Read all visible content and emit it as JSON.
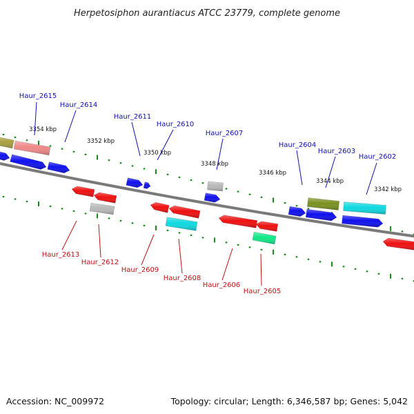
{
  "title": "Herpetosiphon aurantiacus ATCC 23779, complete genome",
  "footer": {
    "accession": "Accession: NC_009972",
    "summary": "Topology: circular; Length: 6,346,587 bp; Genes: 5,042"
  },
  "colors": {
    "backbone": "#7a7a7a",
    "tick": "#1a8a1a",
    "label_forward": "#1010b0",
    "label_reverse": "#c01010",
    "gene_blue": "#1010ee",
    "gene_red": "#ee1010",
    "gene_cyan": "#10d8e0",
    "gene_olive": "#7a9020",
    "gene_gray": "#b8b8b8",
    "gene_pink": "#ef8888",
    "gene_khaki": "#a8a040",
    "gene_green": "#10e888"
  },
  "scale_labels": [
    "3354 kbp",
    "3352 kbp",
    "3350 kbp",
    "3348 kbp",
    "3346 kbp",
    "3344 kbp",
    "3342 kbp"
  ],
  "labels_forward": [
    "Haur_2615",
    "Haur_2614",
    "Haur_2611",
    "Haur_2610",
    "Haur_2607",
    "Haur_2604",
    "Haur_2603",
    "Haur_2602"
  ],
  "labels_reverse": [
    "Haur_2613",
    "Haur_2612",
    "Haur_2609",
    "Haur_2608",
    "Haur_2606",
    "Haur_2605"
  ]
}
